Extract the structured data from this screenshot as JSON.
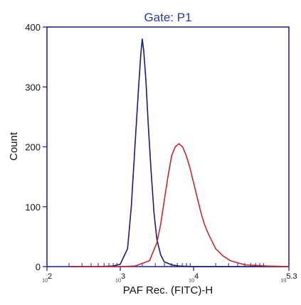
{
  "chart_data": {
    "type": "line",
    "title": "Gate: P1",
    "xlabel": "PAF Rec. (FITC)-H",
    "ylabel": "Count",
    "xscale": "log",
    "xlim": [
      2,
      5.3
    ],
    "ylim": [
      0,
      400
    ],
    "grid": false,
    "x_ticks": [
      {
        "base": "10",
        "exp": "2"
      },
      {
        "base": "10",
        "exp": "3"
      },
      {
        "base": "10",
        "exp": "4"
      },
      {
        "base": "10",
        "exp": "5.3"
      }
    ],
    "y_ticks": [
      "0",
      "100",
      "200",
      "300",
      "400"
    ],
    "series": [
      {
        "color": "#1a1a7a",
        "x": [
          2.3,
          2.5,
          2.7,
          2.9,
          3.0,
          3.1,
          3.15,
          3.2,
          3.25,
          3.28,
          3.3,
          3.32,
          3.35,
          3.38,
          3.42,
          3.46,
          3.5,
          3.55,
          3.6,
          3.7,
          3.8,
          4.0,
          4.3,
          4.6,
          5.0,
          5.3
        ],
        "y": [
          0,
          0,
          0,
          1,
          4,
          30,
          100,
          200,
          300,
          355,
          380,
          360,
          310,
          240,
          160,
          90,
          45,
          20,
          8,
          3,
          1,
          0,
          0,
          0,
          0,
          0
        ]
      },
      {
        "color": "#c0282d",
        "x": [
          2.3,
          3.0,
          3.2,
          3.4,
          3.5,
          3.55,
          3.6,
          3.65,
          3.7,
          3.75,
          3.8,
          3.85,
          3.9,
          3.95,
          4.0,
          4.05,
          4.1,
          4.15,
          4.2,
          4.3,
          4.4,
          4.5,
          4.7,
          5.0,
          5.3
        ],
        "y": [
          0,
          0,
          1,
          10,
          40,
          70,
          110,
          150,
          185,
          200,
          205,
          200,
          185,
          165,
          140,
          115,
          90,
          70,
          55,
          30,
          18,
          10,
          3,
          1,
          0
        ]
      }
    ]
  }
}
